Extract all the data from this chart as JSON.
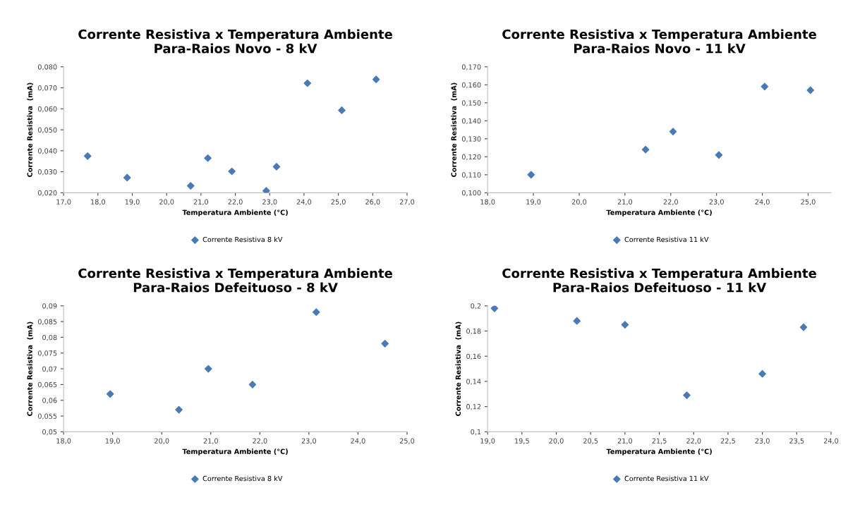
{
  "chart_data": [
    {
      "type": "scatter",
      "title": "Corrente Resistiva x Temperatura Ambiente\nPara-Raios Novo - 8 kV",
      "xlabel": "Temperatura Ambiente (°C)",
      "ylabel": "Corrente Resistiva  (mA)",
      "marker": "diamond",
      "legend": "bottom",
      "grid": false,
      "xlim": [
        17,
        27
      ],
      "xticks": [
        {
          "value": 17,
          "label": "17,0"
        },
        {
          "value": 18,
          "label": "18,0"
        },
        {
          "value": 19,
          "label": "19,0"
        },
        {
          "value": 20,
          "label": "20,0"
        },
        {
          "value": 21,
          "label": "21,0"
        },
        {
          "value": 22,
          "label": "22,0"
        },
        {
          "value": 23,
          "label": "23,0"
        },
        {
          "value": 24,
          "label": "24,0"
        },
        {
          "value": 25,
          "label": "25,0"
        },
        {
          "value": 26,
          "label": "26,0"
        },
        {
          "value": 27,
          "label": "27,0"
        }
      ],
      "ylim": [
        0.02,
        0.08
      ],
      "yticks": [
        {
          "value": 0.02,
          "label": "0,020"
        },
        {
          "value": 0.03,
          "label": "0,030"
        },
        {
          "value": 0.04,
          "label": "0,040"
        },
        {
          "value": 0.05,
          "label": "0,050"
        },
        {
          "value": 0.06,
          "label": "0,060"
        },
        {
          "value": 0.07,
          "label": "0,070"
        },
        {
          "value": 0.08,
          "label": "0,080"
        }
      ],
      "series": [
        {
          "name": "Corrente Resistiva 8 kV",
          "color": "#4a7ab5",
          "x": [
            17.7,
            18.85,
            20.7,
            21.2,
            21.9,
            22.9,
            23.2,
            24.1,
            25.1,
            26.1
          ],
          "values": [
            0.0375,
            0.0272,
            0.0233,
            0.0365,
            0.0302,
            0.0209,
            0.0324,
            0.0722,
            0.0593,
            0.074
          ]
        }
      ]
    },
    {
      "type": "scatter",
      "title": "Corrente Resistiva x Temperatura Ambiente\nPara-Raios Novo - 11 kV",
      "xlabel": "Temperatura Ambiente (°C)",
      "ylabel": "Corrente Resistiva  (mA)",
      "marker": "diamond",
      "legend": "bottom",
      "grid": false,
      "xlim": [
        18,
        25.5
      ],
      "xticks": [
        {
          "value": 18,
          "label": "18,0"
        },
        {
          "value": 19,
          "label": "19,0"
        },
        {
          "value": 20,
          "label": "20,0"
        },
        {
          "value": 21,
          "label": "21,0"
        },
        {
          "value": 22,
          "label": "22,0"
        },
        {
          "value": 23,
          "label": "23,0"
        },
        {
          "value": 24,
          "label": "24,0"
        },
        {
          "value": 25,
          "label": "25,0"
        }
      ],
      "ylim": [
        0.1,
        0.17
      ],
      "yticks": [
        {
          "value": 0.1,
          "label": "0,100"
        },
        {
          "value": 0.11,
          "label": "0,110"
        },
        {
          "value": 0.12,
          "label": "0,120"
        },
        {
          "value": 0.13,
          "label": "0,130"
        },
        {
          "value": 0.14,
          "label": "0,140"
        },
        {
          "value": 0.15,
          "label": "0,150"
        },
        {
          "value": 0.16,
          "label": "0,160"
        },
        {
          "value": 0.17,
          "label": "0,170"
        }
      ],
      "series": [
        {
          "name": "Corrente Resistiva 11 kV",
          "color": "#4a7ab5",
          "x": [
            18.95,
            21.45,
            22.05,
            23.05,
            24.05,
            25.05
          ],
          "values": [
            0.11,
            0.124,
            0.134,
            0.121,
            0.159,
            0.157
          ]
        }
      ]
    },
    {
      "type": "scatter",
      "title": "Corrente Resistiva x Temperatura Ambiente\nPara-Raios Defeituoso - 8 kV",
      "xlabel": "Temperatura Ambiente (°C)",
      "ylabel": "Corrente Resistiva  (mA)",
      "marker": "diamond",
      "legend": "bottom",
      "grid": false,
      "xlim": [
        18,
        25
      ],
      "xticks": [
        {
          "value": 18,
          "label": "18,0"
        },
        {
          "value": 19,
          "label": "19,0"
        },
        {
          "value": 20,
          "label": "20,0"
        },
        {
          "value": 21,
          "label": "21,0"
        },
        {
          "value": 22,
          "label": "22,0"
        },
        {
          "value": 23,
          "label": "23,0"
        },
        {
          "value": 24,
          "label": "24,0"
        },
        {
          "value": 25,
          "label": "25,0"
        }
      ],
      "ylim": [
        0.05,
        0.09
      ],
      "yticks": [
        {
          "value": 0.05,
          "label": "0,05"
        },
        {
          "value": 0.055,
          "label": "0,055"
        },
        {
          "value": 0.06,
          "label": "0,06"
        },
        {
          "value": 0.065,
          "label": "0,065"
        },
        {
          "value": 0.07,
          "label": "0,07"
        },
        {
          "value": 0.075,
          "label": "0,075"
        },
        {
          "value": 0.08,
          "label": "0,08"
        },
        {
          "value": 0.085,
          "label": "0,085"
        },
        {
          "value": 0.09,
          "label": "0,09"
        }
      ],
      "series": [
        {
          "name": "Corrente Resistiva 8 kV",
          "color": "#4a7ab5",
          "x": [
            18.95,
            20.35,
            20.95,
            21.85,
            23.15,
            24.55
          ],
          "values": [
            0.062,
            0.057,
            0.07,
            0.065,
            0.088,
            0.078
          ]
        }
      ]
    },
    {
      "type": "scatter",
      "title": "Corrente Resistiva x Temperatura Ambiente\nPara-Raios Defeituoso - 11 kV",
      "xlabel": "Temperatura Ambiente (°C)",
      "ylabel": "Corrente Resistiva  (mA)",
      "marker": "diamond",
      "legend": "bottom",
      "grid": false,
      "xlim": [
        19,
        24
      ],
      "xticks": [
        {
          "value": 19,
          "label": "19,0"
        },
        {
          "value": 19.5,
          "label": "19,5"
        },
        {
          "value": 20,
          "label": "20,0"
        },
        {
          "value": 20.5,
          "label": "20,5"
        },
        {
          "value": 21,
          "label": "21,0"
        },
        {
          "value": 21.5,
          "label": "21,5"
        },
        {
          "value": 22,
          "label": "22,0"
        },
        {
          "value": 22.5,
          "label": "22,5"
        },
        {
          "value": 23,
          "label": "23,0"
        },
        {
          "value": 23.5,
          "label": "23,5"
        },
        {
          "value": 24,
          "label": "24,0"
        }
      ],
      "ylim": [
        0.1,
        0.2
      ],
      "yticks": [
        {
          "value": 0.1,
          "label": "0,1"
        },
        {
          "value": 0.12,
          "label": "0,12"
        },
        {
          "value": 0.14,
          "label": "0,14"
        },
        {
          "value": 0.16,
          "label": "0,16"
        },
        {
          "value": 0.18,
          "label": "0,18"
        },
        {
          "value": 0.2,
          "label": "0,2"
        }
      ],
      "series": [
        {
          "name": "Corrente Resistiva 11 kV",
          "color": "#4a7ab5",
          "x": [
            19.1,
            20.3,
            21.0,
            21.9,
            23.0,
            23.6
          ],
          "values": [
            0.198,
            0.188,
            0.185,
            0.129,
            0.146,
            0.183
          ]
        }
      ]
    }
  ]
}
